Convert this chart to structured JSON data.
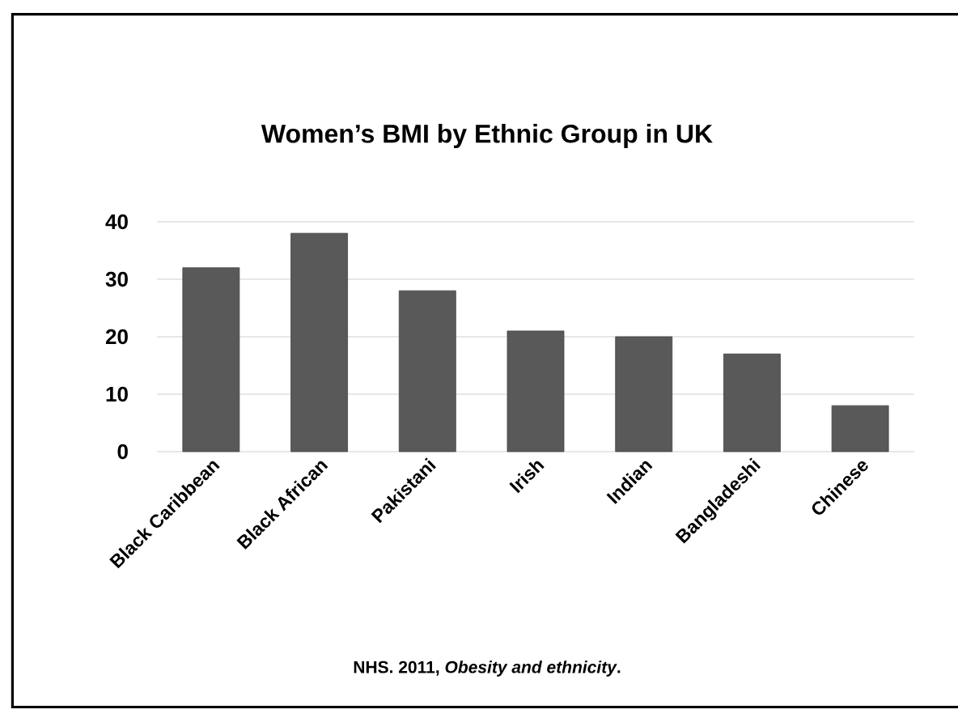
{
  "chart_data": {
    "type": "bar",
    "title": "Women’s BMI by Ethnic Group in UK",
    "categories": [
      "Black Caribbean",
      "Black African",
      "Pakistani",
      "Irish",
      "Indian",
      "Bangladeshi",
      "Chinese"
    ],
    "values": [
      32,
      38,
      28,
      21,
      20,
      17,
      8
    ],
    "color": "#595959",
    "ylim": [
      0,
      40
    ],
    "yticks": [
      0,
      10,
      20,
      30,
      40
    ],
    "grid": "y",
    "annotations": [
      "NHS. 2011, *Obesity and ethnicity*."
    ]
  }
}
